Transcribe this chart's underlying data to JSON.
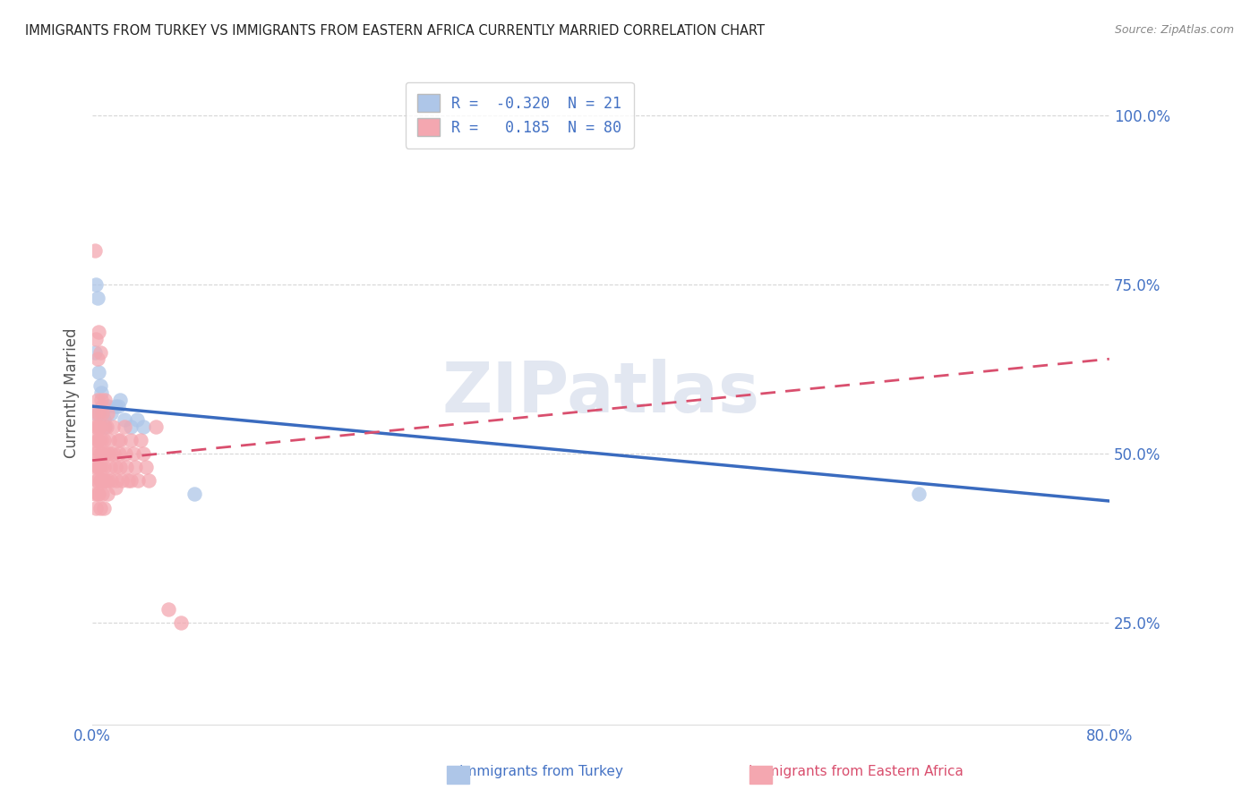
{
  "title": "IMMIGRANTS FROM TURKEY VS IMMIGRANTS FROM EASTERN AFRICA CURRENTLY MARRIED CORRELATION CHART",
  "source": "Source: ZipAtlas.com",
  "ylabel": "Currently Married",
  "xmin": 0.0,
  "xmax": 0.8,
  "ymin": 0.1,
  "ymax": 1.08,
  "yticks": [
    0.25,
    0.5,
    0.75,
    1.0
  ],
  "ytick_labels": [
    "25.0%",
    "50.0%",
    "75.0%",
    "100.0%"
  ],
  "xtick_positions": [
    0.0,
    0.2,
    0.4,
    0.6,
    0.8
  ],
  "xtick_labels": [
    "0.0%",
    "",
    "",
    "",
    "80.0%"
  ],
  "grid_color": "#cccccc",
  "background_color": "#ffffff",
  "turkey": {
    "name": "Immigrants from Turkey",
    "R": -0.32,
    "N": 21,
    "color": "#aec6e8",
    "line_color": "#3a6bbf",
    "line_style": "-",
    "trend_x0": 0.0,
    "trend_y0": 0.57,
    "trend_x1": 0.8,
    "trend_y1": 0.43,
    "x": [
      0.003,
      0.004,
      0.005,
      0.006,
      0.007,
      0.008,
      0.009,
      0.01,
      0.012,
      0.015,
      0.018,
      0.02,
      0.022,
      0.025,
      0.03,
      0.035,
      0.04,
      0.002,
      0.003,
      0.65,
      0.08
    ],
    "y": [
      0.75,
      0.73,
      0.62,
      0.6,
      0.59,
      0.57,
      0.55,
      0.54,
      0.57,
      0.56,
      0.57,
      0.57,
      0.58,
      0.55,
      0.54,
      0.55,
      0.54,
      0.65,
      0.56,
      0.44,
      0.44
    ]
  },
  "eastern_africa": {
    "name": "Immigrants from Eastern Africa",
    "R": 0.185,
    "N": 80,
    "color": "#f4a7b0",
    "line_color": "#d94f6e",
    "line_style": "--",
    "trend_x0": 0.0,
    "trend_y0": 0.49,
    "trend_x1": 0.8,
    "trend_y1": 0.64,
    "x": [
      0.001,
      0.002,
      0.002,
      0.003,
      0.003,
      0.003,
      0.004,
      0.004,
      0.004,
      0.005,
      0.005,
      0.005,
      0.006,
      0.006,
      0.007,
      0.007,
      0.008,
      0.008,
      0.009,
      0.009,
      0.01,
      0.01,
      0.011,
      0.012,
      0.012,
      0.013,
      0.014,
      0.015,
      0.015,
      0.016,
      0.017,
      0.018,
      0.019,
      0.02,
      0.021,
      0.022,
      0.023,
      0.025,
      0.026,
      0.027,
      0.028,
      0.03,
      0.032,
      0.034,
      0.036,
      0.038,
      0.04,
      0.042,
      0.044,
      0.05,
      0.002,
      0.003,
      0.004,
      0.005,
      0.006,
      0.007,
      0.008,
      0.009,
      0.01,
      0.012,
      0.002,
      0.003,
      0.004,
      0.005,
      0.006,
      0.007,
      0.008,
      0.009,
      0.01,
      0.012,
      0.002,
      0.003,
      0.004,
      0.005,
      0.006,
      0.018,
      0.022,
      0.03,
      0.06,
      0.07
    ],
    "y": [
      0.5,
      0.52,
      0.48,
      0.54,
      0.5,
      0.46,
      0.52,
      0.48,
      0.44,
      0.52,
      0.48,
      0.54,
      0.5,
      0.46,
      0.52,
      0.48,
      0.5,
      0.46,
      0.52,
      0.48,
      0.5,
      0.46,
      0.54,
      0.5,
      0.46,
      0.52,
      0.48,
      0.5,
      0.46,
      0.54,
      0.5,
      0.48,
      0.46,
      0.52,
      0.5,
      0.48,
      0.46,
      0.54,
      0.5,
      0.48,
      0.46,
      0.52,
      0.5,
      0.48,
      0.46,
      0.52,
      0.5,
      0.48,
      0.46,
      0.54,
      0.56,
      0.54,
      0.58,
      0.56,
      0.54,
      0.58,
      0.56,
      0.54,
      0.58,
      0.56,
      0.44,
      0.42,
      0.46,
      0.44,
      0.42,
      0.46,
      0.44,
      0.42,
      0.46,
      0.44,
      0.8,
      0.67,
      0.64,
      0.68,
      0.65,
      0.45,
      0.52,
      0.46,
      0.27,
      0.25
    ]
  },
  "legend_color": "#4472c4",
  "title_color": "#222222",
  "source_color": "#888888",
  "tick_color": "#4472c4",
  "watermark": "ZIPatlas",
  "watermark_color": "#d0d8e8"
}
